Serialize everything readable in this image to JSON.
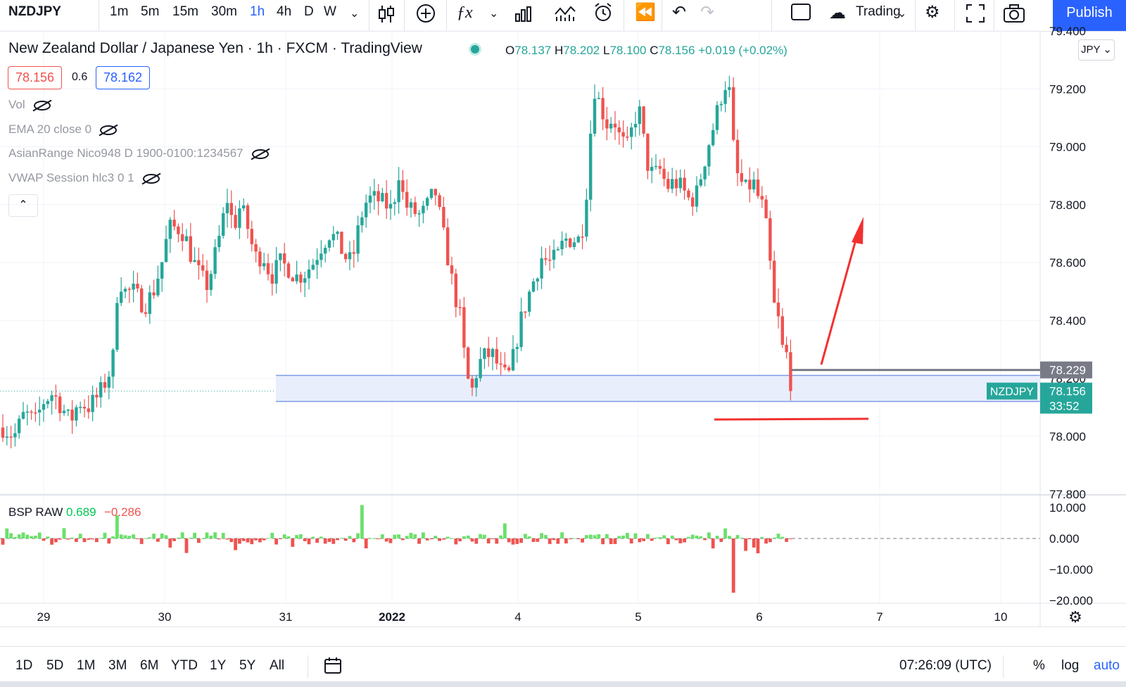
{
  "toolbar": {
    "symbol": "NZDJPY",
    "intervals": [
      "1m",
      "5m",
      "15m",
      "30m",
      "1h",
      "4h",
      "D",
      "W"
    ],
    "active_interval": "1h",
    "layout_name": "Trading",
    "publish_label": "Publish"
  },
  "legend": {
    "title": "New Zealand Dollar / Japanese Yen · 1h · FXCM · TradingView",
    "open_key": "O",
    "open": "78.137",
    "high_key": "H",
    "high": "78.202",
    "low_key": "L",
    "low": "78.100",
    "close_key": "C",
    "close": "78.156",
    "change": "+0.019 (+0.02%)",
    "sell_price": "78.156",
    "spread": "0.6",
    "buy_price": "78.162"
  },
  "indicators": [
    {
      "label": "Vol"
    },
    {
      "label": "EMA 20 close 0"
    },
    {
      "label": "AsianRange Nico948 D 1900-0100:1234567"
    },
    {
      "label": "VWAP Session hlc3 0 1"
    }
  ],
  "currency": "JPY",
  "colors": {
    "up": "#26a69a",
    "down": "#ef5350",
    "accent": "#2962ff",
    "zone_fill": "#e8eefc",
    "zone_line": "#7f9ae6",
    "drawing": "#f23030",
    "hline": "#787b86"
  },
  "chart_data": {
    "type": "candlestick",
    "price_axis": {
      "ticks": [
        "79.400",
        "79.200",
        "79.000",
        "78.800",
        "78.600",
        "78.400",
        "78.200",
        "78.000",
        "77.800"
      ],
      "range": [
        77.8,
        79.4
      ]
    },
    "time_axis": {
      "ticks": [
        "29",
        "30",
        "31",
        "2022",
        "4",
        "5",
        "6",
        "7",
        "10"
      ]
    },
    "last_price": "78.156",
    "last_price_label": "NZDJPY",
    "countdown": "33:52",
    "horizontal_line": "78.229",
    "support_zone": [
      78.12,
      78.21
    ],
    "oscillator": {
      "name": "BSP RAW",
      "value_up": "0.689",
      "value_down": "−0.286",
      "ticks": [
        "10.000",
        "0.000",
        "−10.000",
        "−20.000"
      ],
      "range": [
        -20,
        10
      ]
    }
  },
  "bottom": {
    "ranges": [
      "1D",
      "5D",
      "1M",
      "3M",
      "6M",
      "YTD",
      "1Y",
      "5Y",
      "All"
    ],
    "clock": "07:26:09 (UTC)",
    "percent": "%",
    "log": "log",
    "auto": "auto"
  }
}
